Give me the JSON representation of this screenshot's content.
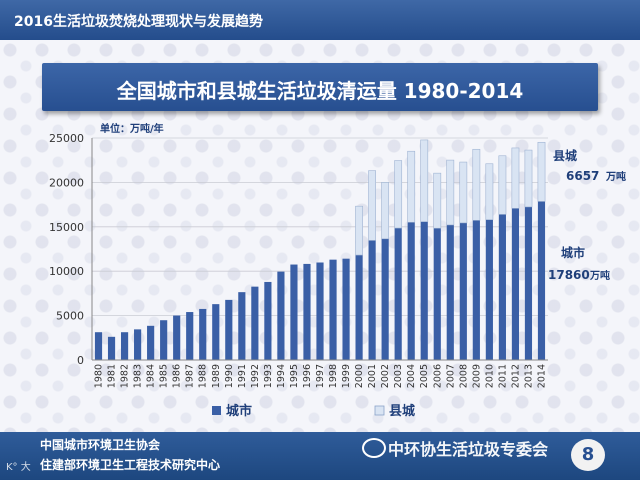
{
  "header": {
    "title": "2016生活垃圾焚烧处理现状与发展趋势"
  },
  "banner": {
    "title": "全国城市和县城生活垃圾清运量 1980-2014"
  },
  "unit_label": "单位：万吨/年",
  "annotations": {
    "county_label": "县城",
    "county_value": "6657",
    "county_unit": "万吨",
    "city_label": "城市",
    "city_value": "17860",
    "city_unit": "万吨"
  },
  "chart_data": {
    "type": "bar",
    "stacked": true,
    "categories": [
      "1980",
      "1981",
      "1982",
      "1983",
      "1984",
      "1985",
      "1986",
      "1987",
      "1988",
      "1989",
      "1990",
      "1991",
      "1992",
      "1993",
      "1994",
      "1995",
      "1996",
      "1997",
      "1998",
      "1999",
      "2000",
      "2001",
      "2002",
      "2003",
      "2004",
      "2005",
      "2006",
      "2007",
      "2008",
      "2009",
      "2010",
      "2011",
      "2012",
      "2013",
      "2014"
    ],
    "series": [
      {
        "name": "城市",
        "color": "#3a5fa6",
        "values": [
          3130,
          2610,
          3130,
          3450,
          3850,
          4480,
          5010,
          5400,
          5750,
          6290,
          6770,
          7640,
          8260,
          8790,
          9950,
          10750,
          10820,
          10980,
          11300,
          11410,
          11820,
          13470,
          13650,
          14860,
          15510,
          15580,
          14840,
          15210,
          15440,
          15730,
          15800,
          16400,
          17080,
          17240,
          17860
        ]
      },
      {
        "name": "县城",
        "color": "#d9e4f3",
        "values": [
          0,
          0,
          0,
          0,
          0,
          0,
          0,
          0,
          0,
          0,
          0,
          0,
          0,
          0,
          0,
          0,
          0,
          0,
          0,
          0,
          5500,
          7850,
          6350,
          7600,
          8000,
          9200,
          6200,
          7300,
          6850,
          8000,
          6300,
          6600,
          6800,
          6400,
          6657
        ]
      }
    ],
    "ylim": [
      0,
      25000
    ],
    "yticks": [
      "0",
      "5000",
      "10000",
      "15000",
      "20000",
      "25000"
    ],
    "grid": true,
    "legend": {
      "position": "bottom",
      "items": [
        "城市",
        "县城"
      ]
    }
  },
  "footer": {
    "org1": "中国城市环境卫生协会",
    "org2": "住建部环境卫生工程技术研究中心",
    "watermark": "中环协生活垃圾专委会",
    "page": "8",
    "corner": "K° 大"
  }
}
